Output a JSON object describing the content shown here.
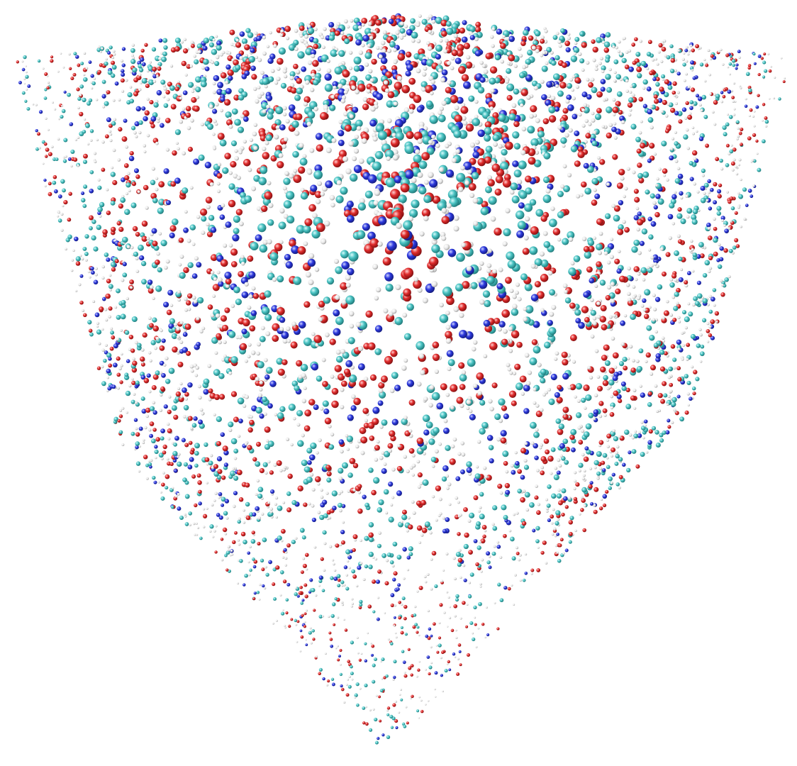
{
  "render": {
    "background": "#ffffff",
    "atom_colors": {
      "carbon": "#3fb8b8",
      "oxygen": "#d9262a",
      "nitrogen": "#2a35d6",
      "hydrogen": "#e6e6e6"
    },
    "style": "ball-and-stick molecular dynamics snapshot, cube viewed along body diagonal"
  }
}
